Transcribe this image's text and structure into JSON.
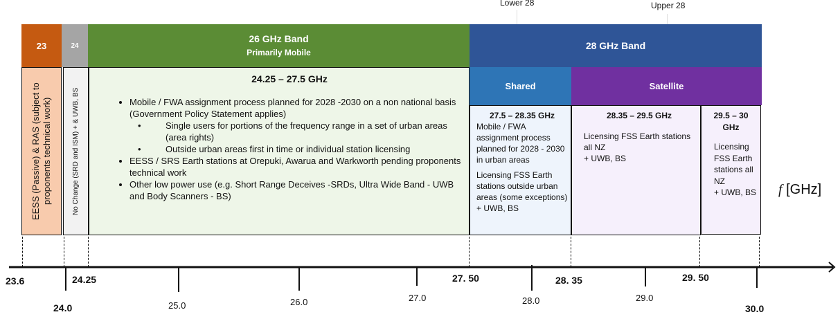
{
  "top_labels": {
    "lower28": "Lower 28",
    "upper28": "Upper 28"
  },
  "header": {
    "b23": "23",
    "b24": "24",
    "b26_title": "26 GHz Band",
    "b26_sub": "Primarily Mobile",
    "b28_title": "28 GHz Band",
    "shared": "Shared",
    "satellite": "Satellite"
  },
  "colors": {
    "b23": "#C55A11",
    "b24": "#A5A5A5",
    "b26": "#5B8C35",
    "b28": "#2F5597",
    "shared": "#2E75B6",
    "satellite": "#7030A0"
  },
  "boxes": {
    "eess": "EESS (Passive) & RAS (subject to proponents technical work)",
    "nochange": "No Change (SRD and ISM) + & UWB, BS",
    "b26": {
      "title": "24.25 – 27.5 GHz",
      "bullets": [
        "Mobile / FWA assignment process planned for 2028 -2030 on a non national basis (Government Policy Statement applies)",
        "EESS / SRS Earth stations at Orepuki, Awarua and Warkworth pending proponents technical work",
        "Other low power use (e.g. Short Range Deceives -SRDs, Ultra Wide Band - UWB and Body Scanners - BS)"
      ],
      "sub_bullets": [
        "Single users for portions of the frequency range in a set of urban areas (area rights)",
        "Outside urban areas first in time or individual station licensing"
      ]
    },
    "lower28": {
      "title": "27.5 – 28.35 GHz",
      "p1": "Mobile / FWA assignment process planned for 2028 - 2030 in urban areas",
      "p2": "Licensing FSS Earth stations outside urban areas (some exceptions)",
      "p3": "+ UWB, BS"
    },
    "upper28a": {
      "title": "28.35 – 29.5 GHz",
      "p1": "Licensing FSS Earth stations all NZ",
      "p2": "+ UWB, BS"
    },
    "upper28b": {
      "title": "29.5 – 30 GHz",
      "p1": "Licensing FSS Earth stations all NZ",
      "p2": "+ UWB, BS"
    }
  },
  "axis": {
    "unit_f": "f",
    "unit": "[GHz]",
    "boundaries": [
      "23.6",
      "24.25",
      "27. 50",
      "28. 35",
      "29. 50"
    ],
    "ticks": [
      "24.0",
      "25.0",
      "26.0",
      "27.0",
      "28.0",
      "29.0",
      "30.0"
    ]
  }
}
